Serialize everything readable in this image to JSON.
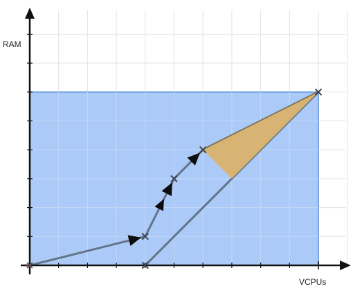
{
  "axes": {
    "x_label": "VCPUs",
    "y_label": "RAM",
    "x_max": 11,
    "y_max": 8
  },
  "colors": {
    "region_fill": "#a7c7f7",
    "region_stroke": "#5b8fe0",
    "grid": "#e3e3e3",
    "path": "#63738a",
    "triangle_fill": "#d9b26b",
    "axis": "#111111",
    "marker_x": "#4f5b6b",
    "start_marker": "#7a1e1e"
  },
  "region": {
    "x_min": 0,
    "x_max": 10,
    "y_min": 0,
    "y_max": 6
  },
  "path_points": [
    {
      "x": 0,
      "y": 0
    },
    {
      "x": 4,
      "y": 1
    },
    {
      "x": 5,
      "y": 3
    },
    {
      "x": 6,
      "y": 4
    },
    {
      "x": 10,
      "y": 6
    }
  ],
  "direct_line": [
    {
      "x": 4,
      "y": 0
    },
    {
      "x": 10,
      "y": 6
    }
  ],
  "triangle": [
    {
      "x": 6,
      "y": 4
    },
    {
      "x": 10,
      "y": 6
    },
    {
      "x": 7,
      "y": 3
    }
  ],
  "markers": [
    {
      "x": 0,
      "y": 0,
      "type": "start"
    },
    {
      "x": 4,
      "y": 0,
      "type": "x"
    },
    {
      "x": 4,
      "y": 1,
      "type": "x"
    },
    {
      "x": 5,
      "y": 3,
      "type": "x"
    },
    {
      "x": 6,
      "y": 4,
      "type": "x"
    },
    {
      "x": 10,
      "y": 6,
      "type": "x"
    }
  ],
  "arrows": [
    {
      "from": 0,
      "to": 1
    },
    {
      "from": 1,
      "to": 2
    },
    {
      "from": 2,
      "to": 3
    }
  ]
}
